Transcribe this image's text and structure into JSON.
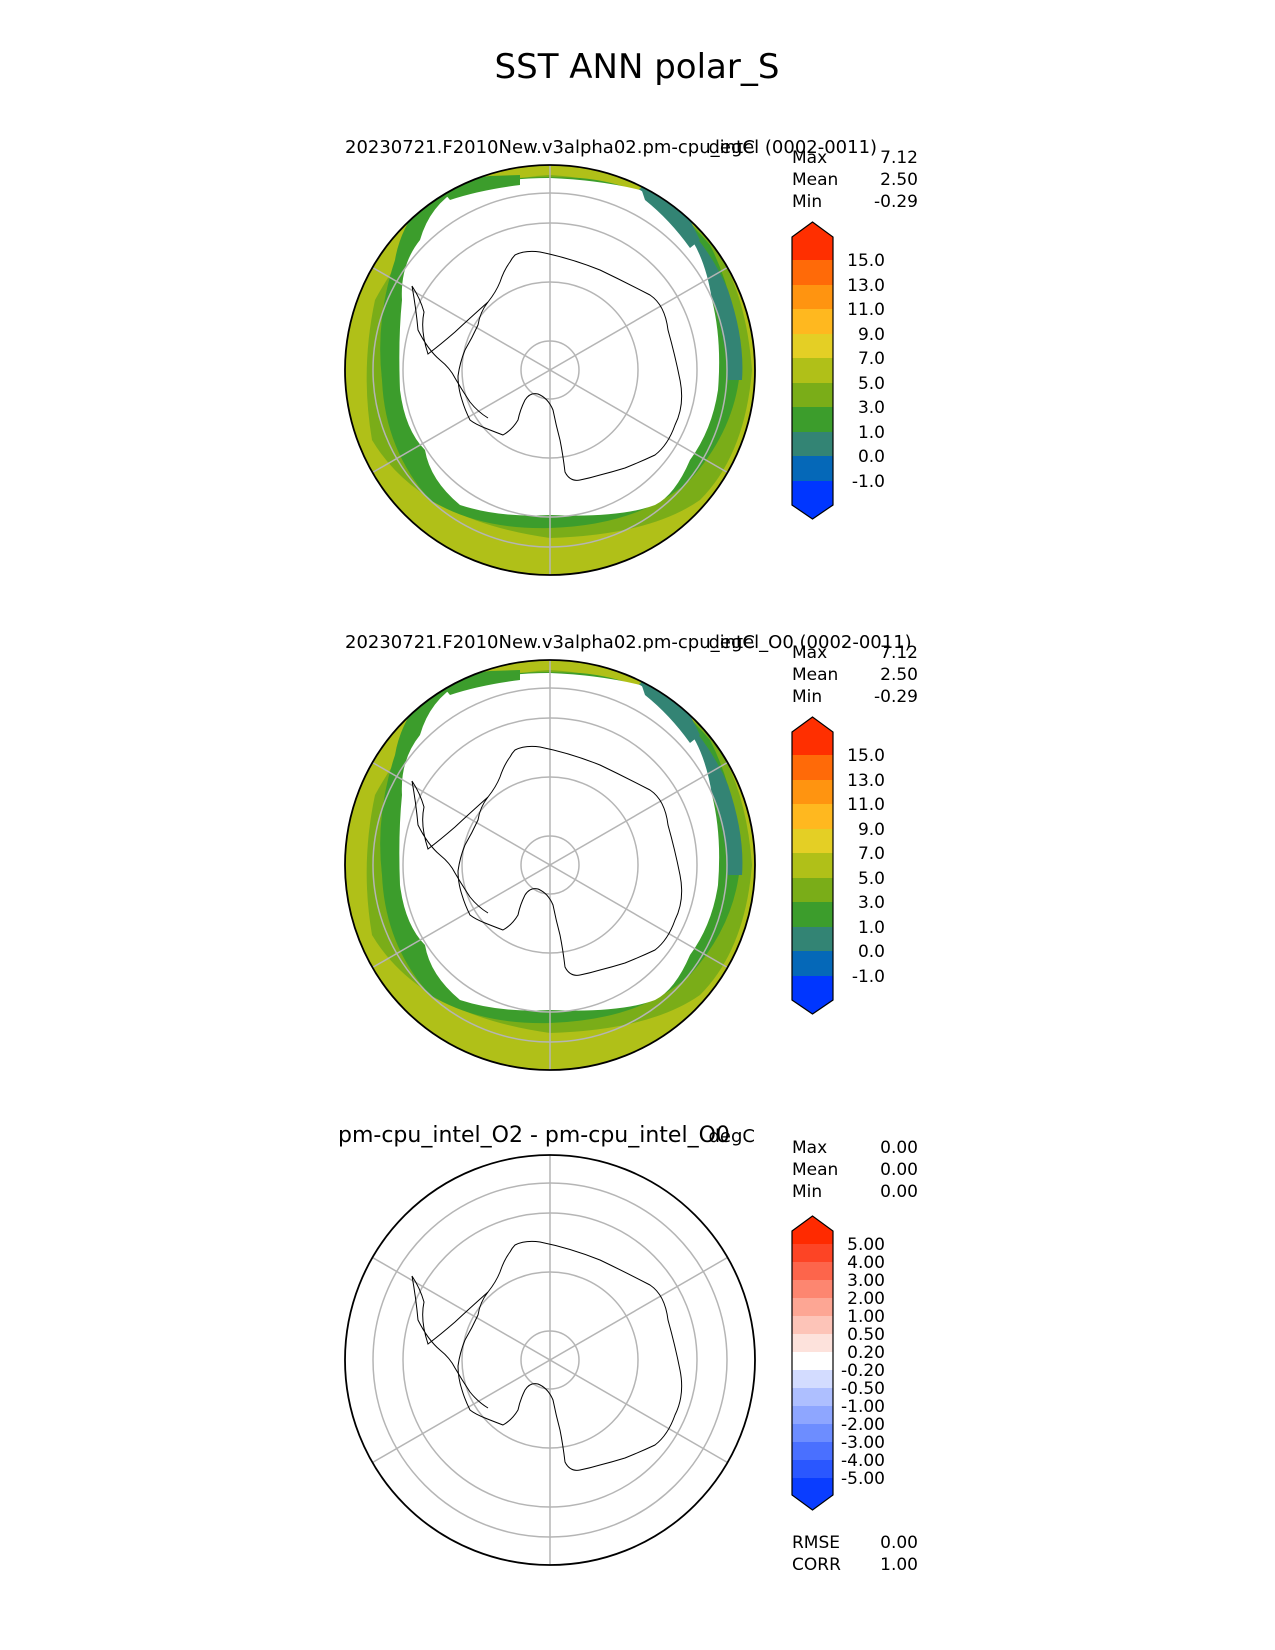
{
  "figure": {
    "title": "SST ANN polar_S"
  },
  "colors": {
    "main_levels": [
      "#0036ff",
      "#0568b8",
      "#338474",
      "#3c9d2c",
      "#7aad18",
      "#b0c018",
      "#e4cf25",
      "#ffb81f",
      "#ff9410",
      "#ff6a08",
      "#ff2f00"
    ],
    "diff_levels": [
      "#0a3dff",
      "#2a57ff",
      "#4a70ff",
      "#6d8dff",
      "#8ea6ff",
      "#aebfff",
      "#d3dcff",
      "#ffffff",
      "#fde2dc",
      "#fdc4b8",
      "#fda694",
      "#fd8670",
      "#fd654b",
      "#fd4425",
      "#ff2a00"
    ],
    "ocean_bands_main": [
      "#b0c018",
      "#7aad18",
      "#3c9d2c",
      "#338474"
    ]
  },
  "chart_data": [
    {
      "type": "heatmap",
      "projection": "south polar stereographic",
      "title": "20230721.F2010New.v3alpha02.pm-cpu_intel (0002-0011)",
      "units": "degC",
      "stats": [
        {
          "label": "Max",
          "value": "7.12"
        },
        {
          "label": "Mean",
          "value": "2.50"
        },
        {
          "label": "Min",
          "value": "-0.29"
        }
      ],
      "colorbar_ticks": [
        "15.0",
        "13.0",
        "11.0",
        "9.0",
        "7.0",
        "5.0",
        "3.0",
        "1.0",
        "0.0",
        "-1.0"
      ],
      "colorbar_extend": "both"
    },
    {
      "type": "heatmap",
      "projection": "south polar stereographic",
      "title": "20230721.F2010New.v3alpha02.pm-cpu_intel_O0 (0002-0011)",
      "units": "degC",
      "stats": [
        {
          "label": "Max",
          "value": "7.12"
        },
        {
          "label": "Mean",
          "value": "2.50"
        },
        {
          "label": "Min",
          "value": "-0.29"
        }
      ],
      "colorbar_ticks": [
        "15.0",
        "13.0",
        "11.0",
        "9.0",
        "7.0",
        "5.0",
        "3.0",
        "1.0",
        "0.0",
        "-1.0"
      ],
      "colorbar_extend": "both"
    },
    {
      "type": "heatmap",
      "projection": "south polar stereographic",
      "title": "pm-cpu_intel_O2 - pm-cpu_intel_O0",
      "units": "degC",
      "stats": [
        {
          "label": "Max",
          "value": "0.00"
        },
        {
          "label": "Mean",
          "value": "0.00"
        },
        {
          "label": "Min",
          "value": "0.00"
        }
      ],
      "colorbar_ticks": [
        "5.00",
        "4.00",
        "3.00",
        "2.00",
        "1.00",
        "0.50",
        "0.20",
        "-0.20",
        "-0.50",
        "-1.00",
        "-2.00",
        "-3.00",
        "-4.00",
        "-5.00"
      ],
      "colorbar_extend": "both",
      "metrics": [
        {
          "label": "RMSE",
          "value": "0.00"
        },
        {
          "label": "CORR",
          "value": "1.00"
        }
      ]
    }
  ]
}
